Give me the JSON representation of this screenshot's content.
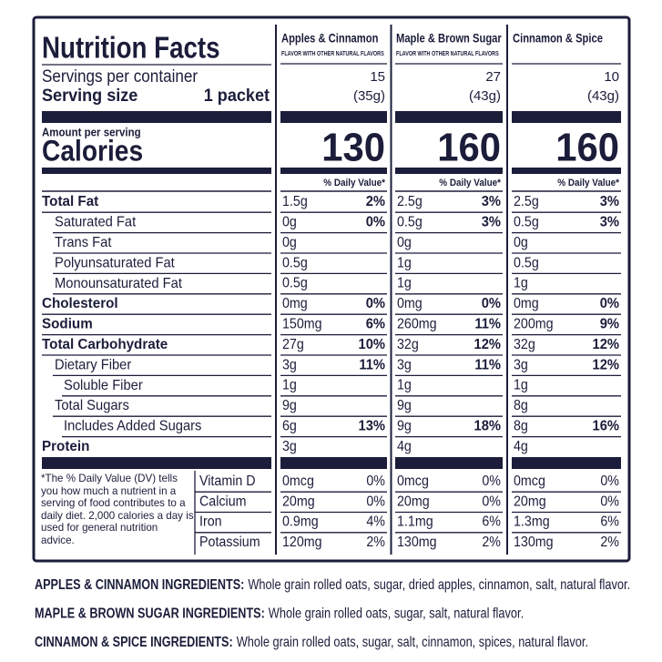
{
  "header": {
    "title": "Nutrition Facts",
    "servings_label": "Servings per container",
    "serving_size_label": "Serving size",
    "serving_size_value": "1 packet",
    "amount_per_serving": "Amount per serving",
    "calories_label": "Calories"
  },
  "products": [
    {
      "name": "Apples & Cinnamon",
      "subtitle": "FLAVOR WITH OTHER NATURAL FLAVORS",
      "servings": 15,
      "serving_size": "(35g)",
      "calories": 130,
      "dv_header": "% Daily Value*"
    },
    {
      "name": "Maple & Brown Sugar",
      "subtitle": "FLAVOR WITH OTHER NATURAL FLAVORS",
      "servings": 27,
      "serving_size": "(43g)",
      "calories": 160,
      "dv_header": "% Daily Value*"
    },
    {
      "name": "Cinnamon & Spice",
      "servings": 10,
      "serving_size": "(43g)",
      "calories": 160,
      "dv_header": "% Daily Value*"
    }
  ],
  "nutrients": [
    {
      "label": "Total Fat",
      "bold": true,
      "indent": 0,
      "values": [
        {
          "amount": "1.5g",
          "dv": "2%"
        },
        {
          "amount": "2.5g",
          "dv": "3%"
        },
        {
          "amount": "2.5g",
          "dv": "3%"
        }
      ]
    },
    {
      "label": "Saturated Fat",
      "bold": false,
      "indent": 1,
      "values": [
        {
          "amount": "0g",
          "dv": "0%"
        },
        {
          "amount": "0.5g",
          "dv": "3%"
        },
        {
          "amount": "0.5g",
          "dv": "3%"
        }
      ]
    },
    {
      "label": "Trans Fat",
      "bold": false,
      "indent": 1,
      "values": [
        {
          "amount": "0g"
        },
        {
          "amount": "0g"
        },
        {
          "amount": "0g"
        }
      ]
    },
    {
      "label": "Polyunsaturated Fat",
      "bold": false,
      "indent": 1,
      "values": [
        {
          "amount": "0.5g"
        },
        {
          "amount": "1g"
        },
        {
          "amount": "0.5g"
        }
      ]
    },
    {
      "label": "Monounsaturated Fat",
      "bold": false,
      "indent": 1,
      "values": [
        {
          "amount": "0.5g"
        },
        {
          "amount": "1g"
        },
        {
          "amount": "1g"
        }
      ]
    },
    {
      "label": "Cholesterol",
      "bold": true,
      "indent": 0,
      "values": [
        {
          "amount": "0mg",
          "dv": "0%"
        },
        {
          "amount": "0mg",
          "dv": "0%"
        },
        {
          "amount": "0mg",
          "dv": "0%"
        }
      ]
    },
    {
      "label": "Sodium",
      "bold": true,
      "indent": 0,
      "values": [
        {
          "amount": "150mg",
          "dv": "6%"
        },
        {
          "amount": "260mg",
          "dv": "11%"
        },
        {
          "amount": "200mg",
          "dv": "9%"
        }
      ]
    },
    {
      "label": "Total Carbohydrate",
      "bold": true,
      "indent": 0,
      "values": [
        {
          "amount": "27g",
          "dv": "10%"
        },
        {
          "amount": "32g",
          "dv": "12%"
        },
        {
          "amount": "32g",
          "dv": "12%"
        }
      ]
    },
    {
      "label": "Dietary Fiber",
      "bold": false,
      "indent": 1,
      "values": [
        {
          "amount": "3g",
          "dv": "11%"
        },
        {
          "amount": "3g",
          "dv": "11%"
        },
        {
          "amount": "3g",
          "dv": "12%"
        }
      ]
    },
    {
      "label": "Soluble Fiber",
      "bold": false,
      "indent": 2,
      "values": [
        {
          "amount": "1g"
        },
        {
          "amount": "1g"
        },
        {
          "amount": "1g"
        }
      ]
    },
    {
      "label": "Total Sugars",
      "bold": false,
      "indent": 1,
      "values": [
        {
          "amount": "9g"
        },
        {
          "amount": "9g"
        },
        {
          "amount": "8g"
        }
      ]
    },
    {
      "label": "Includes Added Sugars",
      "bold": false,
      "indent": 2,
      "values": [
        {
          "amount": "6g",
          "dv": "13%"
        },
        {
          "amount": "9g",
          "dv": "18%"
        },
        {
          "amount": "8g",
          "dv": "16%"
        }
      ]
    },
    {
      "label": "Protein",
      "bold": true,
      "indent": 0,
      "values": [
        {
          "amount": "3g"
        },
        {
          "amount": "4g"
        },
        {
          "amount": "4g"
        }
      ]
    }
  ],
  "footnote": "*The % Daily Value (DV) tells you how much a nutrient in a serving of food contributes to a daily diet. 2,000 calories a day is used for general nutrition advice.",
  "minerals": [
    {
      "label": "Vitamin D",
      "values": [
        {
          "amount": "0mcg",
          "dv": "0%"
        },
        {
          "amount": "0mcg",
          "dv": "0%"
        },
        {
          "amount": "0mcg",
          "dv": "0%"
        }
      ]
    },
    {
      "label": "Calcium",
      "values": [
        {
          "amount": "20mg",
          "dv": "0%"
        },
        {
          "amount": "20mg",
          "dv": "0%"
        },
        {
          "amount": "20mg",
          "dv": "0%"
        }
      ]
    },
    {
      "label": "Iron",
      "values": [
        {
          "amount": "0.9mg",
          "dv": "4%"
        },
        {
          "amount": "1.1mg",
          "dv": "6%"
        },
        {
          "amount": "1.3mg",
          "dv": "6%"
        }
      ]
    },
    {
      "label": "Potassium",
      "values": [
        {
          "amount": "120mg",
          "dv": "2%"
        },
        {
          "amount": "130mg",
          "dv": "2%"
        },
        {
          "amount": "130mg",
          "dv": "2%"
        }
      ]
    }
  ],
  "ingredients": [
    {
      "label": "APPLES & CINNAMON INGREDIENTS:",
      "text": "Whole grain rolled oats, sugar, dried apples, cinnamon, salt, natural flavor."
    },
    {
      "label": "MAPLE & BROWN SUGAR INGREDIENTS:",
      "text": "Whole grain rolled oats, sugar, salt, natural flavor."
    },
    {
      "label": "CINNAMON & SPICE INGREDIENTS:",
      "text": "Whole grain rolled oats, sugar, salt, cinnamon, spices, natural flavor."
    }
  ]
}
